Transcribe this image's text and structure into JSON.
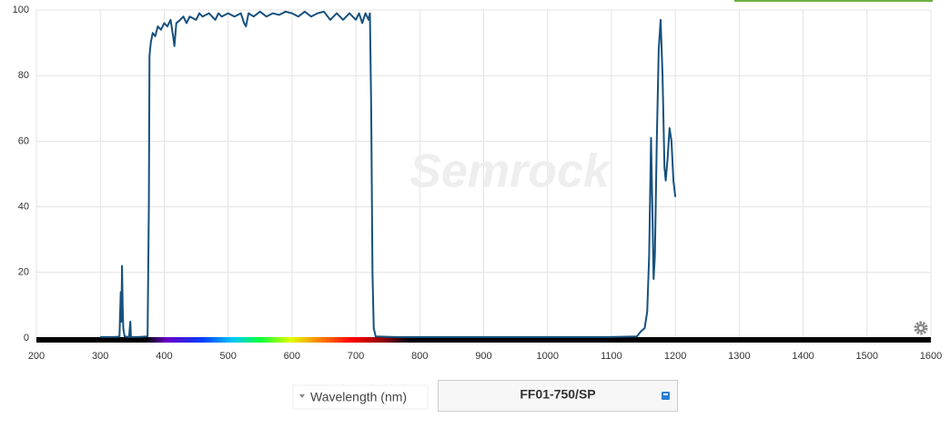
{
  "chart_data": {
    "type": "line",
    "watermark": "Semrock",
    "x_axis_label": "Wavelength (nm)",
    "x": [
      300,
      320,
      330,
      332,
      333,
      334,
      335,
      336,
      338,
      345,
      347,
      348,
      360,
      374,
      376,
      377,
      379,
      382,
      386,
      390,
      395,
      400,
      405,
      410,
      414,
      416,
      419,
      425,
      430,
      435,
      440,
      450,
      455,
      460,
      470,
      480,
      485,
      490,
      500,
      510,
      520,
      525,
      528,
      532,
      540,
      550,
      560,
      570,
      580,
      590,
      600,
      610,
      620,
      630,
      640,
      650,
      660,
      670,
      680,
      690,
      700,
      705,
      710,
      715,
      720,
      722,
      724,
      726,
      728,
      731,
      760,
      900,
      1100,
      1140,
      1146,
      1152,
      1156,
      1159,
      1162,
      1164,
      1166,
      1168,
      1171,
      1174,
      1177,
      1180,
      1183,
      1185,
      1188,
      1191,
      1194,
      1197,
      1200
    ],
    "series": [
      {
        "name": "FF01-750/SP",
        "color": "#17517e",
        "values": [
          0.3,
          0.3,
          0.4,
          14,
          5,
          22,
          10,
          3,
          0.5,
          0.3,
          5,
          0.3,
          0.3,
          0.5,
          40,
          86,
          90,
          93,
          92,
          95,
          94,
          96,
          95,
          97,
          92,
          89,
          96,
          97,
          98,
          96,
          98,
          97,
          99,
          98,
          99,
          97,
          99,
          98,
          99,
          98,
          99,
          96,
          95,
          99,
          98,
          99.5,
          98,
          99,
          98.5,
          99.5,
          99,
          98,
          99.5,
          98,
          99,
          99.5,
          97,
          99,
          97,
          99,
          97,
          99,
          96,
          99,
          97,
          99,
          70,
          20,
          3,
          0.5,
          0.3,
          0.3,
          0.3,
          0.5,
          2,
          3,
          8,
          25,
          61,
          40,
          18,
          25,
          60,
          88,
          97,
          80,
          52,
          48,
          55,
          64,
          60,
          48,
          43
        ]
      }
    ],
    "xlim": [
      200,
      1600
    ],
    "xticks": [
      200,
      300,
      400,
      500,
      600,
      700,
      800,
      900,
      1000,
      1100,
      1200,
      1300,
      1400,
      1500,
      1600
    ],
    "ylim": [
      0,
      100
    ],
    "yticks": [
      0,
      20,
      40,
      60,
      80,
      100
    ],
    "grid": true
  }
}
